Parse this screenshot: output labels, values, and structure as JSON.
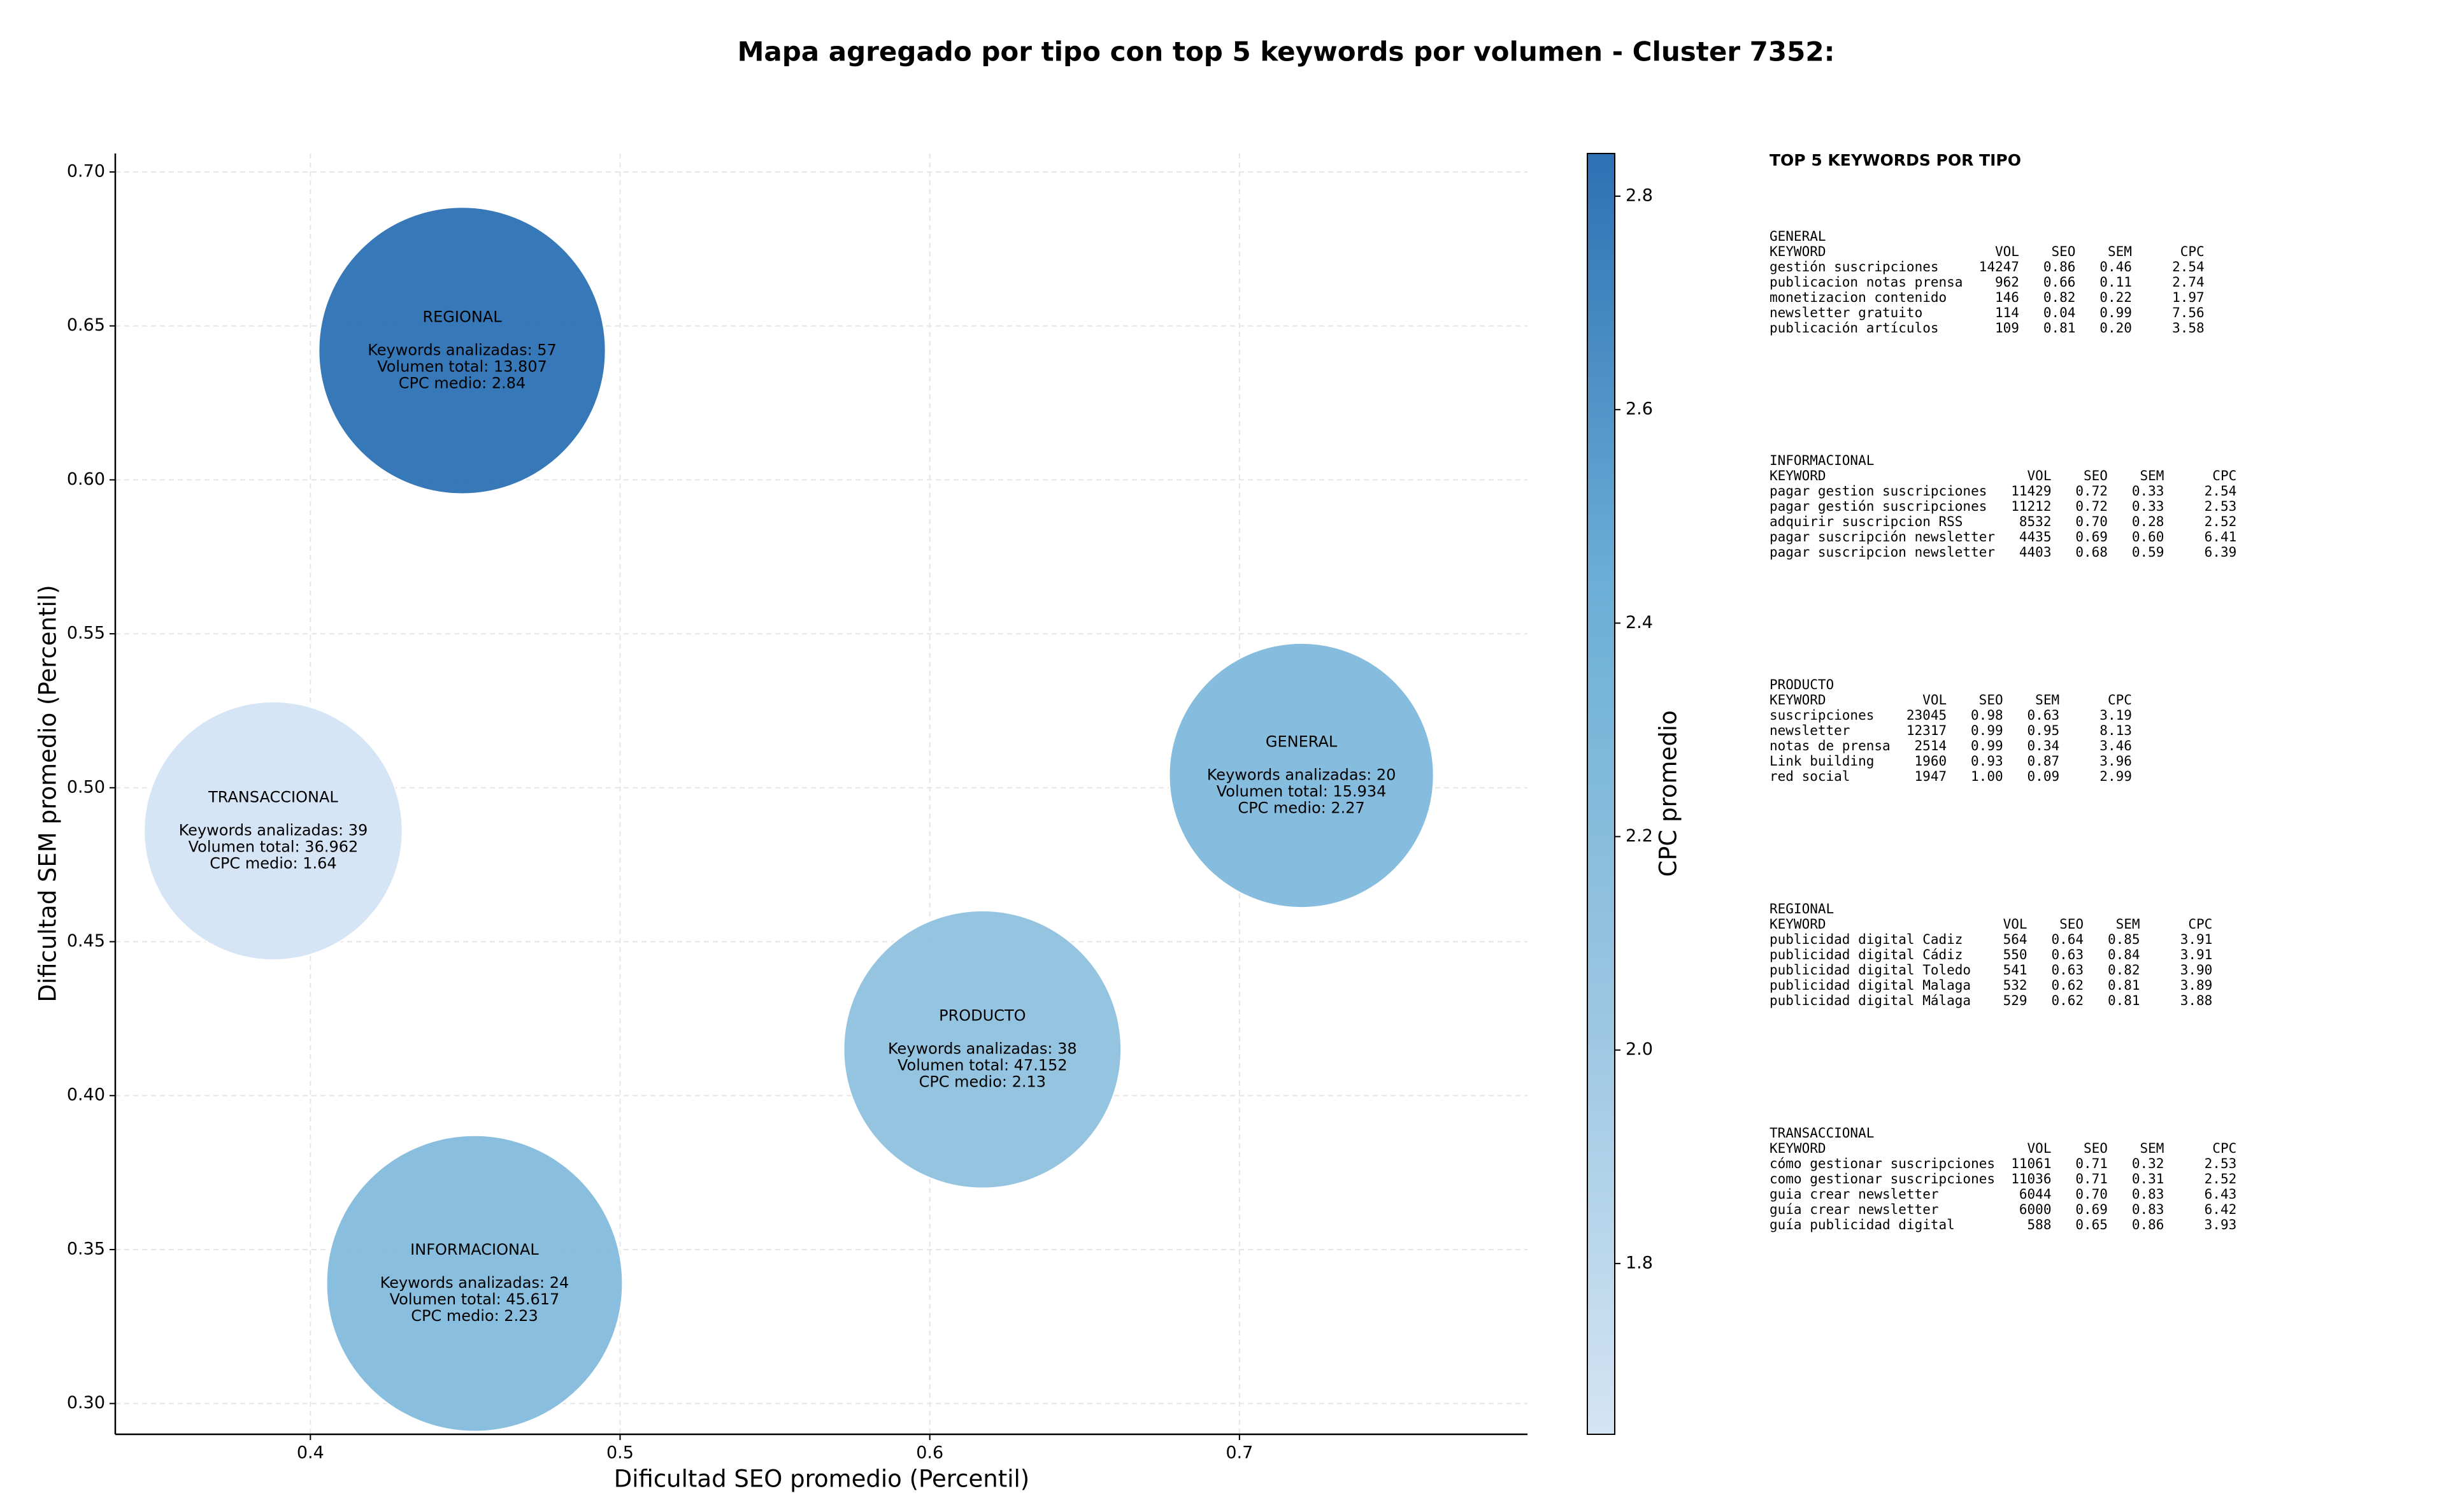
{
  "chart_data": {
    "type": "scatter",
    "title": "Mapa agregado por tipo con top 5 keywords por volumen - Cluster 7352:",
    "x_label": "Dificultad SEO promedio (Percentil)",
    "y_label": "Dificultad SEM promedio (Percentil)",
    "colorbar_label": "CPC promedio",
    "xlim": [
      0.337,
      0.793
    ],
    "xticks": [
      0.4,
      0.5,
      0.6,
      0.7
    ],
    "ylim": [
      0.29,
      0.706
    ],
    "yticks": [
      {
        "value": 0.3,
        "label": "0.30"
      },
      0.35,
      {
        "value": 0.4,
        "label": "0.40"
      },
      0.45,
      {
        "value": 0.5,
        "label": "0.50"
      },
      0.55,
      {
        "value": 0.6,
        "label": "0.60"
      },
      0.65,
      {
        "value": 0.7,
        "label": "0.70"
      }
    ],
    "clim": [
      1.64,
      2.84
    ],
    "cticks": [
      1.8,
      {
        "value": 2,
        "label": "2.0"
      },
      2.2,
      2.4,
      2.6,
      2.8
    ],
    "colormap": [
      "#d4e4f4",
      "#9ac6e1",
      "#6baed6",
      "#2c71b4"
    ],
    "grid": true,
    "points": [
      {
        "name": "REGIONAL",
        "x": 0.449,
        "y": 0.642,
        "radius": 0.0463,
        "cpc": 2.84,
        "annotation": [
          "Keywords analizadas: 57",
          "Volumen total: 13.807",
          "CPC medio: 2.84"
        ]
      },
      {
        "name": "GENERAL",
        "x": 0.72,
        "y": 0.504,
        "radius": 0.0427,
        "cpc": 2.27,
        "annotation": [
          "Keywords analizadas: 20",
          "Volumen total: 15.934",
          "CPC medio: 2.27"
        ]
      },
      {
        "name": "TRANSACCIONAL",
        "x": 0.388,
        "y": 0.486,
        "radius": 0.0417,
        "cpc": 1.64,
        "annotation": [
          "Keywords analizadas: 39",
          "Volumen total: 36.962",
          "CPC medio: 1.64"
        ]
      },
      {
        "name": "PRODUCTO",
        "x": 0.617,
        "y": 0.415,
        "radius": 0.0448,
        "cpc": 2.13,
        "annotation": [
          "Keywords analizadas: 38",
          "Volumen total: 47.152",
          "CPC medio: 2.13"
        ]
      },
      {
        "name": "INFORMACIONAL",
        "x": 0.453,
        "y": 0.339,
        "radius": 0.0478,
        "cpc": 2.23,
        "annotation": [
          "Keywords analizadas: 24",
          "Volumen total: 45.617",
          "CPC medio: 2.23"
        ]
      }
    ]
  },
  "keyword_table": {
    "title": "TOP 5 KEYWORDS POR TIPO",
    "groups": [
      {
        "name": "GENERAL",
        "header": [
          "KEYWORD",
          "VOL",
          "SEO",
          "SEM",
          "CPC"
        ],
        "rows": [
          [
            "gestión suscripciones",
            "14247",
            "0.86",
            "0.46",
            "2.54"
          ],
          [
            "publicacion notas prensa",
            "962",
            "0.66",
            "0.11",
            "2.74"
          ],
          [
            "monetizacion contenido",
            "146",
            "0.82",
            "0.22",
            "1.97"
          ],
          [
            "newsletter gratuito",
            "114",
            "0.04",
            "0.99",
            "7.56"
          ],
          [
            "publicación artículos",
            "109",
            "0.81",
            "0.20",
            "3.58"
          ]
        ]
      },
      {
        "name": "INFORMACIONAL",
        "header": [
          "KEYWORD",
          "VOL",
          "SEO",
          "SEM",
          "CPC"
        ],
        "rows": [
          [
            "pagar gestion suscripciones",
            "11429",
            "0.72",
            "0.33",
            "2.54"
          ],
          [
            "pagar gestión suscripciones",
            "11212",
            "0.72",
            "0.33",
            "2.53"
          ],
          [
            "adquirir suscripcion RSS",
            "8532",
            "0.70",
            "0.28",
            "2.52"
          ],
          [
            "pagar suscripción newsletter",
            "4435",
            "0.69",
            "0.60",
            "6.41"
          ],
          [
            "pagar suscripcion newsletter",
            "4403",
            "0.68",
            "0.59",
            "6.39"
          ]
        ]
      },
      {
        "name": "PRODUCTO",
        "header": [
          "KEYWORD",
          "VOL",
          "SEO",
          "SEM",
          "CPC"
        ],
        "rows": [
          [
            "suscripciones",
            "23045",
            "0.98",
            "0.63",
            "3.19"
          ],
          [
            "newsletter",
            "12317",
            "0.99",
            "0.95",
            "8.13"
          ],
          [
            "notas de prensa",
            "2514",
            "0.99",
            "0.34",
            "3.46"
          ],
          [
            "Link building",
            "1960",
            "0.93",
            "0.87",
            "3.96"
          ],
          [
            "red social",
            "1947",
            "1.00",
            "0.09",
            "2.99"
          ]
        ]
      },
      {
        "name": "REGIONAL",
        "header": [
          "KEYWORD",
          "VOL",
          "SEO",
          "SEM",
          "CPC"
        ],
        "rows": [
          [
            "publicidad digital Cadiz",
            "564",
            "0.64",
            "0.85",
            "3.91"
          ],
          [
            "publicidad digital Cádiz",
            "550",
            "0.63",
            "0.84",
            "3.91"
          ],
          [
            "publicidad digital Toledo",
            "541",
            "0.63",
            "0.82",
            "3.90"
          ],
          [
            "publicidad digital Malaga",
            "532",
            "0.62",
            "0.81",
            "3.89"
          ],
          [
            "publicidad digital Málaga",
            "529",
            "0.62",
            "0.81",
            "3.88"
          ]
        ]
      },
      {
        "name": "TRANSACCIONAL",
        "header": [
          "KEYWORD",
          "VOL",
          "SEO",
          "SEM",
          "CPC"
        ],
        "rows": [
          [
            "cómo gestionar suscripciones",
            "11061",
            "0.71",
            "0.32",
            "2.53"
          ],
          [
            "como gestionar suscripciones",
            "11036",
            "0.71",
            "0.31",
            "2.52"
          ],
          [
            "guia crear newsletter",
            "6044",
            "0.70",
            "0.83",
            "6.43"
          ],
          [
            "guía crear newsletter",
            "6000",
            "0.69",
            "0.83",
            "6.42"
          ],
          [
            "guía publicidad digital",
            "588",
            "0.65",
            "0.86",
            "3.93"
          ]
        ]
      }
    ]
  }
}
